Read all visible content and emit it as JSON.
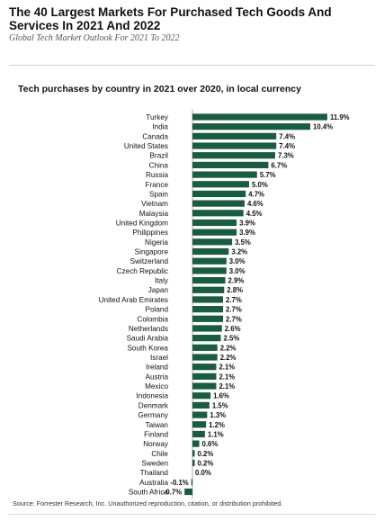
{
  "header": {
    "title": "The 40 Largest Markets For Purchased Tech Goods And Services In 2021 And 2022",
    "subtitle": "Global Tech Market Outlook For 2021 To 2022"
  },
  "footer": {
    "source": "Source: Forrester Research, Inc. Unauthorized reproduction, citation, or distribution prohibited."
  },
  "colors": {
    "bar": "#1a5c3f",
    "text": "#111111"
  },
  "chart_data": {
    "type": "bar",
    "orientation": "horizontal",
    "title": "Tech purchases by country in 2021 over 2020, in local currency",
    "value_suffix": "%",
    "categories": [
      "Turkey",
      "India",
      "Canada",
      "United States",
      "Brazil",
      "China",
      "Russia",
      "France",
      "Spain",
      "Vietnam",
      "Malaysia",
      "United Kingdom",
      "Philippines",
      "Nigeria",
      "Singapore",
      "Switzerland",
      "Czech Republic",
      "Italy",
      "Japan",
      "United Arab Emirates",
      "Poland",
      "Colombia",
      "Netherlands",
      "Saudi Arabia",
      "South Korea",
      "Israel",
      "Ireland",
      "Austria",
      "Mexico",
      "Indonesia",
      "Denmark",
      "Germany",
      "Taiwan",
      "Finland",
      "Norway",
      "Chile",
      "Sweden",
      "Thailand",
      "Australia",
      "South Africa"
    ],
    "values": [
      11.9,
      10.4,
      7.4,
      7.4,
      7.3,
      6.7,
      5.7,
      5.0,
      4.7,
      4.6,
      4.5,
      3.9,
      3.9,
      3.5,
      3.2,
      3.0,
      3.0,
      2.9,
      2.8,
      2.7,
      2.7,
      2.7,
      2.6,
      2.5,
      2.2,
      2.2,
      2.1,
      2.1,
      2.1,
      1.6,
      1.5,
      1.3,
      1.2,
      1.1,
      0.6,
      0.2,
      0.2,
      0.0,
      -0.1,
      -0.7
    ],
    "grid": false,
    "legend": "none"
  }
}
